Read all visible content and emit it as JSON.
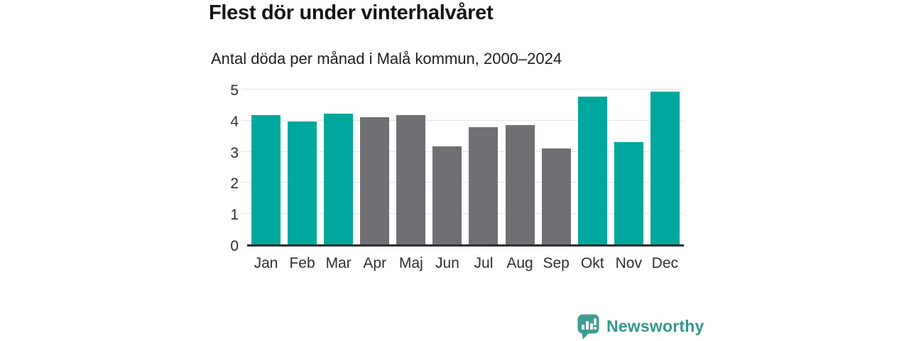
{
  "header": {
    "title": "Flest dör under vinterhalvåret",
    "subtitle": "Antal döda per månad i Malå kommun, 2000–2024"
  },
  "chart_data": {
    "type": "bar",
    "title": "Flest dör under vinterhalvåret",
    "subtitle": "Antal döda per månad i Malå kommun, 2000–2024",
    "categories": [
      "Jan",
      "Feb",
      "Mar",
      "Apr",
      "Maj",
      "Jun",
      "Jul",
      "Aug",
      "Sep",
      "Okt",
      "Nov",
      "Dec"
    ],
    "values": [
      4.16,
      3.96,
      4.2,
      4.08,
      4.16,
      3.16,
      3.76,
      3.84,
      3.08,
      4.76,
      3.28,
      4.92
    ],
    "series_note": "teal = winter half-year months, gray = summer half-year months",
    "bar_color_keys": [
      "accent",
      "accent",
      "accent",
      "neutral",
      "neutral",
      "neutral",
      "neutral",
      "neutral",
      "neutral",
      "accent",
      "accent",
      "accent"
    ],
    "colors": {
      "accent": "#00a79c",
      "neutral": "#706f73"
    },
    "xlabel": "",
    "ylabel": "",
    "ylim": [
      0,
      5
    ],
    "yticks": [
      0,
      1,
      2,
      3,
      4,
      5
    ],
    "grid": "horizontal",
    "legend": "none"
  },
  "footer": {
    "logo_text": "Newsworthy",
    "logo_color": "#34988d",
    "logo_icon": "bar-chart-speech-bubble-icon",
    "logo_icon_color": "#3d9c92"
  }
}
